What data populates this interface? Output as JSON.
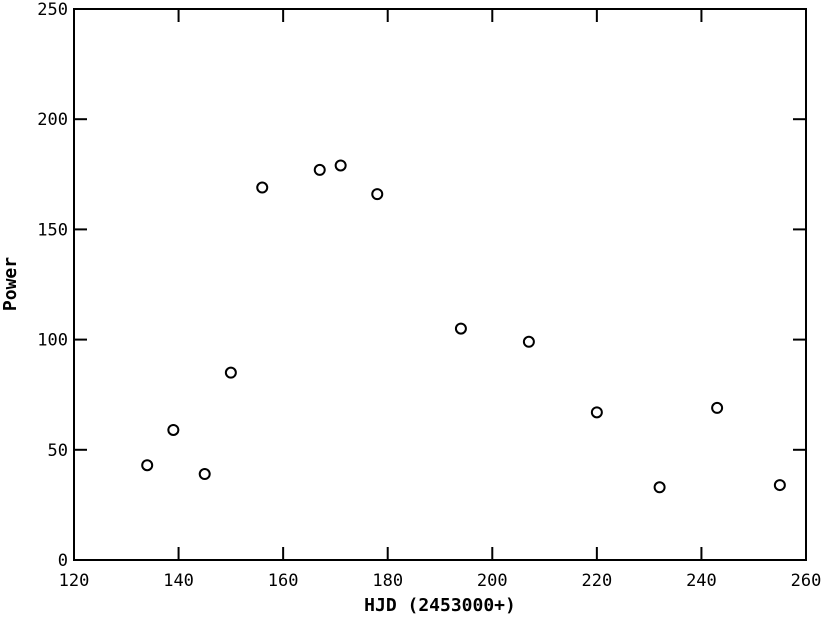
{
  "chart_data": {
    "type": "scatter",
    "title": "",
    "xlabel": "HJD (2453000+)",
    "ylabel": "Power",
    "xlim": [
      120,
      260
    ],
    "ylim": [
      0,
      250
    ],
    "xticks": [
      120,
      140,
      160,
      180,
      200,
      220,
      240,
      260
    ],
    "yticks": [
      0,
      50,
      100,
      150,
      200,
      250
    ],
    "grid": false,
    "marker": "open-circle",
    "points": [
      {
        "x": 134,
        "y": 43
      },
      {
        "x": 139,
        "y": 59
      },
      {
        "x": 145,
        "y": 39
      },
      {
        "x": 150,
        "y": 85
      },
      {
        "x": 156,
        "y": 169
      },
      {
        "x": 167,
        "y": 177
      },
      {
        "x": 171,
        "y": 179
      },
      {
        "x": 178,
        "y": 166
      },
      {
        "x": 194,
        "y": 105
      },
      {
        "x": 207,
        "y": 99
      },
      {
        "x": 220,
        "y": 67
      },
      {
        "x": 232,
        "y": 33
      },
      {
        "x": 243,
        "y": 69
      },
      {
        "x": 255,
        "y": 34
      }
    ],
    "colors": {
      "ink": "#000000",
      "background": "#ffffff"
    }
  }
}
